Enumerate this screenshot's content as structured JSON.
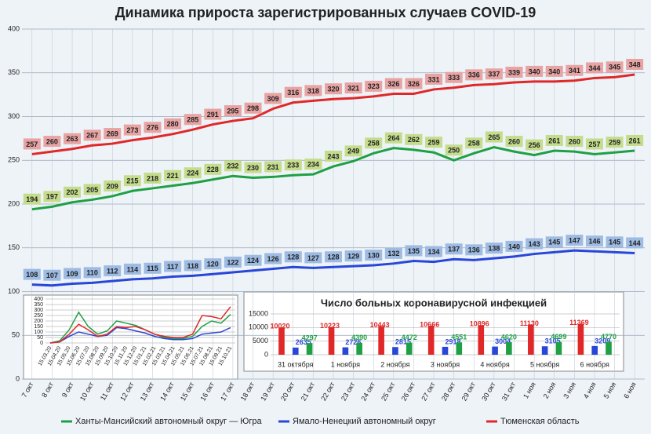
{
  "chart_data": [
    {
      "type": "line",
      "title": "Динамика прироста зарегистрированных случаев COVID-19",
      "categories": [
        "7 окт",
        "8 окт",
        "9 окт",
        "10 окт",
        "11 окт",
        "12 окт",
        "13 окт",
        "14 окт",
        "15 окт",
        "16 окт",
        "17 окт",
        "18 окт",
        "19 окт",
        "20 окт",
        "21 окт",
        "22 окт",
        "23 окт",
        "24 окт",
        "25 окт",
        "26 окт",
        "27 окт",
        "28 окт",
        "29 окт",
        "30 окт",
        "31 окт",
        "1 ноя",
        "2 ноя",
        "3 ноя",
        "4 ноя",
        "5 ноя",
        "6 ноя"
      ],
      "series": [
        {
          "name": "Ханты-Мансийский автономный округ — Югра",
          "color": "#1fa045",
          "label_color": "#c4dc8c",
          "values": [
            194,
            197,
            202,
            205,
            209,
            215,
            218,
            221,
            224,
            228,
            232,
            230,
            231,
            233,
            234,
            243,
            249,
            258,
            264,
            262,
            259,
            250,
            258,
            265,
            260,
            256,
            261,
            260,
            257,
            259,
            261
          ]
        },
        {
          "name": "Ямало-Ненецкий автономный округ",
          "color": "#2846d8",
          "label_color": "#9dbbe3",
          "values": [
            108,
            107,
            109,
            110,
            112,
            114,
            115,
            117,
            118,
            120,
            122,
            124,
            126,
            128,
            127,
            128,
            129,
            130,
            132,
            135,
            134,
            137,
            136,
            138,
            140,
            143,
            145,
            147,
            146,
            145,
            144
          ]
        },
        {
          "name": "Тюменская область",
          "color": "#e02828",
          "label_color": "#e8a3a3",
          "values": [
            257,
            260,
            263,
            267,
            269,
            273,
            276,
            280,
            285,
            291,
            295,
            298,
            309,
            316,
            318,
            320,
            321,
            323,
            326,
            326,
            331,
            333,
            336,
            337,
            339,
            340,
            340,
            341,
            344,
            345,
            348
          ]
        }
      ],
      "ylim": [
        0,
        400
      ],
      "yticks": [
        0,
        50,
        100,
        150,
        200,
        250,
        300,
        350,
        400
      ],
      "grid": true,
      "legend": "bottom"
    },
    {
      "type": "line",
      "categories": [
        "15.03.20",
        "15.04.20",
        "15.05.20",
        "15.06.20",
        "15.07.20",
        "15.08.20",
        "15.09.20",
        "15.10.20",
        "15.11.20",
        "15.12.20",
        "15.01.21",
        "15.02.21",
        "15.03.21",
        "15.04.21",
        "15.05.21",
        "15.06.21",
        "15.07.21",
        "15.08.21",
        "15.09.21",
        "15.10.21"
      ],
      "series": [
        {
          "color": "#1fa045",
          "values": [
            0,
            20,
            120,
            280,
            150,
            80,
            110,
            200,
            180,
            160,
            120,
            80,
            50,
            40,
            40,
            60,
            150,
            200,
            180,
            260
          ]
        },
        {
          "color": "#2846d8",
          "values": [
            0,
            10,
            60,
            100,
            80,
            60,
            70,
            140,
            130,
            110,
            90,
            60,
            40,
            30,
            30,
            40,
            80,
            90,
            100,
            140
          ]
        },
        {
          "color": "#e02828",
          "values": [
            0,
            10,
            80,
            170,
            120,
            60,
            80,
            150,
            140,
            150,
            120,
            80,
            60,
            50,
            50,
            80,
            250,
            240,
            220,
            330
          ]
        }
      ],
      "ylim": [
        0,
        400
      ],
      "yticks": [
        0,
        50,
        100,
        150,
        200,
        250,
        300,
        350,
        400
      ],
      "grid": true
    },
    {
      "type": "bar",
      "title": "Число больных коронавирусной инфекцией",
      "categories": [
        "31 октября",
        "1 ноября",
        "2 ноября",
        "3 ноября",
        "4 ноября",
        "5 ноября",
        "6 ноября"
      ],
      "series": [
        {
          "color": "#e02828",
          "values": [
            10020,
            10223,
            10443,
            10666,
            10896,
            11130,
            11369
          ]
        },
        {
          "color": "#2846d8",
          "values": [
            2635,
            2726,
            2815,
            2918,
            3004,
            3105,
            3209
          ]
        },
        {
          "color": "#1fa045",
          "values": [
            4297,
            4390,
            4472,
            4551,
            4620,
            4699,
            4770
          ]
        }
      ],
      "ylim": [
        0,
        15000
      ],
      "yticks": [
        0,
        5000,
        10000,
        15000
      ],
      "grid": true
    }
  ]
}
